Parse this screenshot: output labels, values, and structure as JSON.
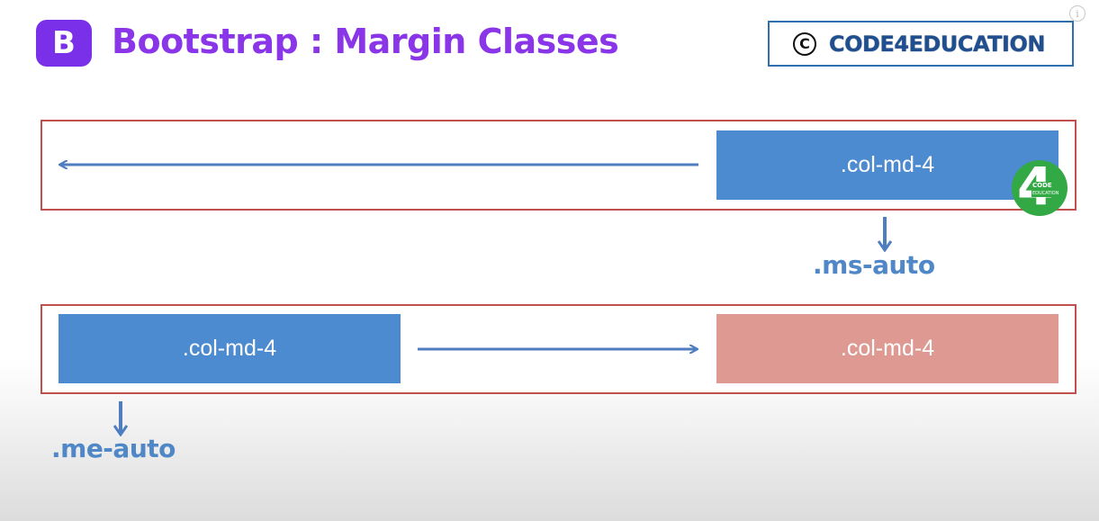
{
  "header": {
    "logo_letter": "B",
    "title": "Bootstrap : Margin Classes",
    "brand": {
      "copyright_symbol": "C",
      "name": "CODE4EDUCATION"
    },
    "info_glyph": "i"
  },
  "row1": {
    "column_label": ".col-md-4",
    "arrow_direction": "left",
    "class_label": ".ms-auto"
  },
  "row2": {
    "left_column_label": ".col-md-4",
    "right_column_label": ".col-md-4",
    "arrow_direction": "right",
    "class_label": ".me-auto"
  },
  "watermark": {
    "glyph": "4",
    "code": "CODE",
    "education": "EDUCATION"
  },
  "colors": {
    "title": "#8a36e8",
    "logo_bg": "#7a2fe8",
    "frame_border": "#c0504d",
    "column_blue": "#4d8bd1",
    "column_pink": "#de9a92",
    "arrow": "#4f7ec0",
    "class_label": "#4f87c7",
    "brand_border": "#2f6fb0",
    "brand_text": "#1f4f8f",
    "watermark": "#33a946"
  },
  "icons": {
    "logo": "bootstrap-logo-icon",
    "copyright": "copyright-icon",
    "info": "info-icon",
    "arrows": [
      "arrow-left-icon",
      "arrow-down-icon",
      "arrow-right-icon",
      "arrow-down-icon"
    ]
  }
}
